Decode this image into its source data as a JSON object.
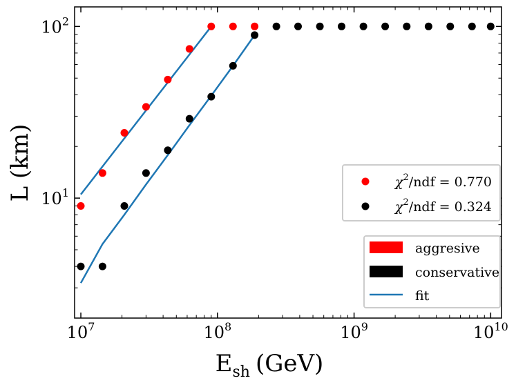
{
  "chart_data": {
    "type": "scatter",
    "x_scale": "log",
    "y_scale": "log",
    "xlim": [
      9000000,
      12000000000
    ],
    "ylim": [
      2.0,
      130
    ],
    "xlabel_main": "E",
    "xlabel_sub": "sh",
    "xlabel_unit": "(GeV)",
    "ylabel": "L (km)",
    "x_ticks": [
      {
        "value": 10000000,
        "base": "10",
        "exp": "7"
      },
      {
        "value": 100000000,
        "base": "10",
        "exp": "8"
      },
      {
        "value": 1000000000,
        "base": "10",
        "exp": "9"
      },
      {
        "value": 10000000000,
        "base": "10",
        "exp": "10"
      }
    ],
    "y_ticks": [
      {
        "value": 10,
        "base": "10",
        "exp": "1"
      },
      {
        "value": 100,
        "base": "10",
        "exp": "2"
      }
    ],
    "grid": false,
    "series": [
      {
        "key": "aggressive_points",
        "color": "#ff0000",
        "marker": "circle",
        "x": [
          10000000,
          14400000,
          20800000,
          30000000,
          43300000,
          62400000,
          90000000,
          130000000,
          187000000
        ],
        "y": [
          9,
          14,
          24,
          34,
          49,
          74,
          100,
          100,
          100
        ]
      },
      {
        "key": "conservative_points",
        "color": "#000000",
        "marker": "circle",
        "x": [
          10000000,
          14400000,
          20800000,
          30000000,
          43300000,
          62400000,
          90000000,
          130000000,
          187000000,
          270000000,
          389000000,
          562000000,
          810000000,
          1170000000,
          1690000000,
          2430000000,
          3510000000,
          5060000000,
          7300000000,
          10000000000
        ],
        "y": [
          4,
          4,
          9,
          14,
          19,
          29,
          39,
          59,
          89,
          100,
          100,
          100,
          100,
          100,
          100,
          100,
          100,
          100,
          100,
          100
        ]
      }
    ],
    "fits": [
      {
        "key": "aggressive_fit",
        "color": "#1f77b4",
        "x": [
          10000000,
          90000000
        ],
        "y": [
          10.5,
          100
        ]
      },
      {
        "key": "conservative_fit",
        "color": "#1f77b4",
        "x": [
          10000000,
          14400000,
          20800000,
          30000000,
          43300000,
          62400000,
          90000000,
          130000000,
          187000000
        ],
        "y": [
          3.2,
          5.4,
          8.0,
          12.0,
          17.8,
          26.6,
          39.5,
          59,
          89
        ]
      }
    ],
    "legend_top": {
      "placement": "center-right",
      "entries": [
        {
          "color": "#ff0000",
          "chi": "χ",
          "sup": "2",
          "rest": "/ndf = 0.770"
        },
        {
          "color": "#000000",
          "chi": "χ",
          "sup": "2",
          "rest": "/ndf = 0.324"
        }
      ]
    },
    "legend_bottom": {
      "placement": "lower-right",
      "entries": [
        {
          "label": "aggresive",
          "kind": "patch",
          "color": "#ff0000"
        },
        {
          "label": "conservative",
          "kind": "patch",
          "color": "#000000"
        },
        {
          "label": "fit",
          "kind": "line",
          "color": "#1f77b4"
        }
      ]
    }
  }
}
